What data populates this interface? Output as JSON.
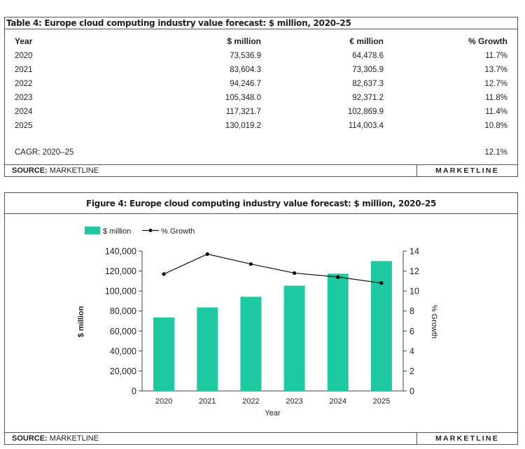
{
  "table": {
    "title": "Table 4: Europe cloud computing industry value forecast: $ million, 2020–25",
    "headers": [
      "Year",
      "$ million",
      "€ million",
      "% Growth"
    ],
    "rows": [
      [
        "2020",
        "73,536.9",
        "64,478.6",
        "11.7%"
      ],
      [
        "2021",
        "83,604.3",
        "73,305.9",
        "13.7%"
      ],
      [
        "2022",
        "94,246.7",
        "82,637.3",
        "12.7%"
      ],
      [
        "2023",
        "105,348.0",
        "92,371.2",
        "11.8%"
      ],
      [
        "2024",
        "117,321.7",
        "102,869.9",
        "11.4%"
      ],
      [
        "2025",
        "130,019.2",
        "114,003.4",
        "10.8%"
      ]
    ],
    "cagr_label": "CAGR: 2020–25",
    "cagr_value": "12.1%",
    "source_label": "SOURCE:",
    "source_value": "MARKETLINE",
    "brand": "MARKETLINE"
  },
  "figure": {
    "title": "Figure 4: Europe cloud computing industry value forecast: $ million, 2020–25",
    "source_label": "SOURCE:",
    "source_value": "MARKETLINE",
    "brand": "MARKETLINE"
  },
  "chart_data": {
    "type": "bar",
    "categories": [
      "2020",
      "2021",
      "2022",
      "2023",
      "2024",
      "2025"
    ],
    "series": [
      {
        "name": "$ million",
        "type": "bar",
        "axis": "left",
        "color": "#1dc9a0",
        "values": [
          73536.9,
          83604.3,
          94246.7,
          105348.0,
          117321.7,
          130019.2
        ]
      },
      {
        "name": "% Growth",
        "type": "line",
        "axis": "right",
        "color": "#000000",
        "values": [
          11.7,
          13.7,
          12.7,
          11.8,
          11.4,
          10.8
        ]
      }
    ],
    "xlabel": "Year",
    "ylabel": "$ million",
    "y2label": "% Growth",
    "ylim": [
      0,
      140000
    ],
    "y2lim": [
      0,
      14
    ],
    "yticks": [
      "0",
      "20,000",
      "40,000",
      "60,000",
      "80,000",
      "100,000",
      "120,000",
      "140,000"
    ],
    "y2ticks": [
      "0",
      "2",
      "4",
      "6",
      "8",
      "10",
      "12",
      "14"
    ],
    "legend_position": "top-left",
    "grid": false
  }
}
